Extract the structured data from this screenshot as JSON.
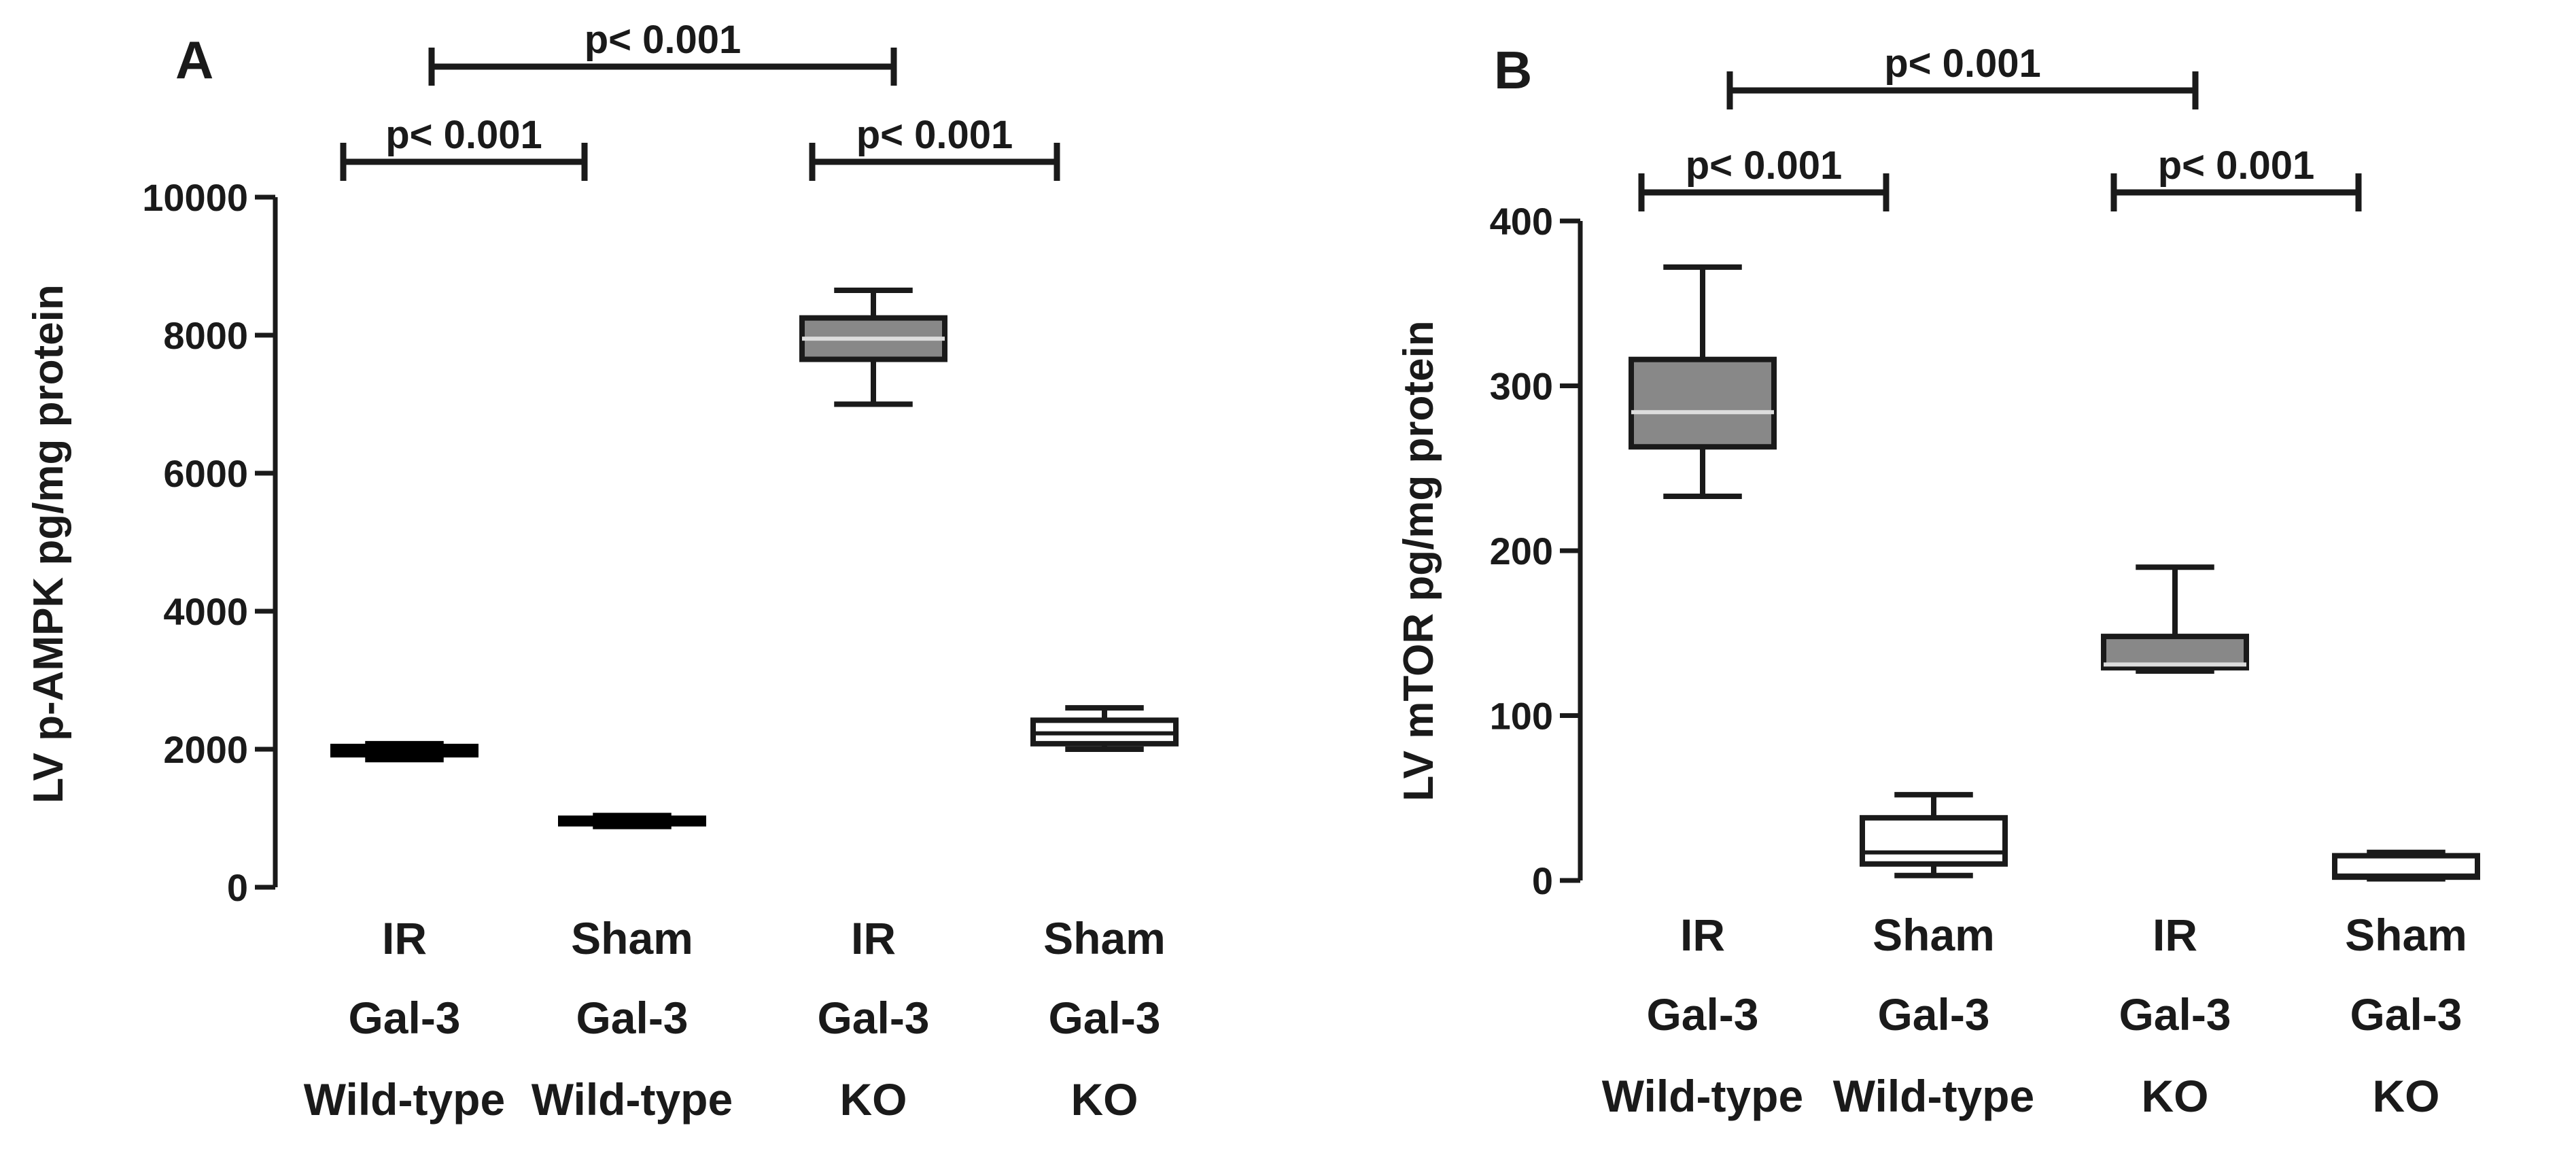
{
  "chart_data": [
    {
      "panel": "A",
      "type": "box",
      "ylabel": "LV p-AMPK pg/mg protein",
      "xlabel": "",
      "ylim": [
        0,
        10000
      ],
      "yticks": [
        0,
        2000,
        4000,
        6000,
        8000,
        10000
      ],
      "grid": false,
      "categories": [
        [
          "IR",
          "Gal-3",
          "Wild-type"
        ],
        [
          "Sham",
          "Gal-3",
          "Wild-type"
        ],
        [
          "IR",
          "Gal-3",
          "KO"
        ],
        [
          "Sham",
          "Gal-3",
          "KO"
        ]
      ],
      "boxes": [
        {
          "min": 1850,
          "q1": 1920,
          "median": 1980,
          "q3": 2040,
          "max": 2080,
          "fill": "#000000"
        },
        {
          "min": 880,
          "q1": 920,
          "median": 960,
          "q3": 1000,
          "max": 1040,
          "fill": "#000000"
        },
        {
          "min": 7000,
          "q1": 7650,
          "median": 7950,
          "q3": 8250,
          "max": 8650,
          "fill": "#888888"
        },
        {
          "min": 2000,
          "q1": 2080,
          "median": 2230,
          "q3": 2420,
          "max": 2600,
          "fill": "#ffffff"
        }
      ],
      "comparisons": [
        {
          "from": 0,
          "to": 1,
          "label": "p< 0.001",
          "level": 1
        },
        {
          "from": 2,
          "to": 3,
          "label": "p< 0.001",
          "level": 1
        },
        {
          "from": 0,
          "to": 2,
          "label": "p< 0.001",
          "level": 2
        }
      ]
    },
    {
      "panel": "B",
      "type": "box",
      "ylabel": "LV mTOR pg/mg protein",
      "xlabel": "",
      "ylim": [
        0,
        400
      ],
      "yticks": [
        0,
        100,
        200,
        300,
        400
      ],
      "grid": false,
      "categories": [
        [
          "IR",
          "Gal-3",
          "Wild-type"
        ],
        [
          "Sham",
          "Gal-3",
          "Wild-type"
        ],
        [
          "IR",
          "Gal-3",
          "KO"
        ],
        [
          "Sham",
          "Gal-3",
          "KO"
        ]
      ],
      "boxes": [
        {
          "min": 233,
          "q1": 263,
          "median": 284,
          "q3": 316,
          "max": 372,
          "fill": "#888888"
        },
        {
          "min": 3,
          "q1": 10,
          "median": 17,
          "q3": 38,
          "max": 52,
          "fill": "#ffffff"
        },
        {
          "min": 127,
          "q1": 129,
          "median": 131,
          "q3": 148,
          "max": 190,
          "fill": "#888888"
        },
        {
          "min": 1,
          "q1": 2,
          "median": 3,
          "q3": 15,
          "max": 17,
          "fill": "#ffffff"
        }
      ],
      "comparisons": [
        {
          "from": 0,
          "to": 1,
          "label": "p< 0.001",
          "level": 1
        },
        {
          "from": 2,
          "to": 3,
          "label": "p< 0.001",
          "level": 1
        },
        {
          "from": 0,
          "to": 2,
          "label": "p< 0.001",
          "level": 2
        }
      ]
    }
  ]
}
